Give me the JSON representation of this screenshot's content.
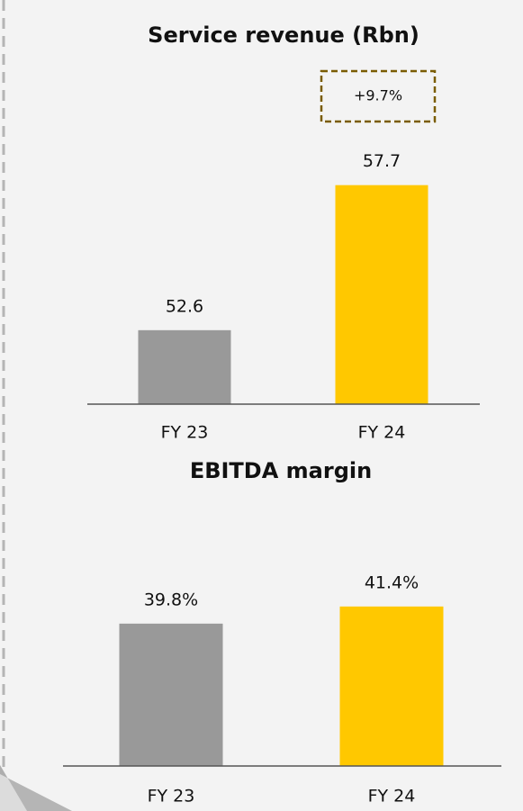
{
  "chart_data": [
    {
      "type": "bar",
      "title": "Service revenue (Rbn)",
      "annotation": "+9.7%",
      "categories": [
        "FY 23",
        "FY 24"
      ],
      "values": [
        52.6,
        57.7
      ],
      "colors": [
        "#999999",
        "#ffc800"
      ],
      "ylim": [
        50,
        60
      ]
    },
    {
      "type": "bar",
      "title": "EBITDA margin",
      "categories": [
        "FY 23",
        "FY 24"
      ],
      "values": [
        39.8,
        41.4
      ],
      "value_labels": [
        "39.8%",
        "41.4%"
      ],
      "colors": [
        "#999999",
        "#ffc800"
      ],
      "ylim": [
        26.5,
        45
      ]
    }
  ]
}
